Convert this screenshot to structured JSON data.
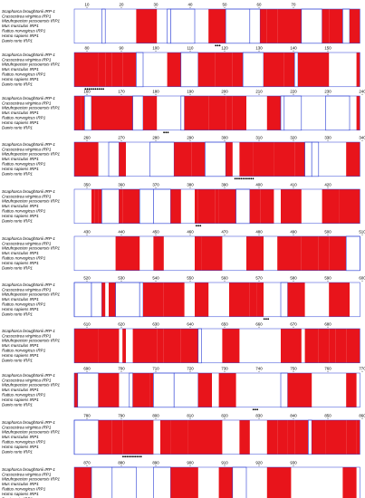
{
  "species": [
    "Scapharca broughtonii IRP-1",
    "Crassostrea virginica IRP1",
    "Mizuhopecten yessoensis IRP1",
    "Mus musculus IRP1",
    "Rattus norvegicus IRP1",
    "Homo sapiens IRP1",
    "Danio rerio IRP1"
  ],
  "blocks": [
    {
      "positions": [
        10,
        20,
        30,
        40,
        50,
        60,
        70
      ]
    },
    {
      "positions": [
        80,
        90,
        100,
        110,
        120,
        130,
        140,
        150
      ]
    },
    {
      "positions": [
        160,
        170,
        180,
        190,
        200,
        210,
        220,
        230,
        240
      ]
    },
    {
      "positions": [
        260,
        270,
        280,
        290,
        300,
        310,
        320,
        330,
        340
      ]
    },
    {
      "positions": [
        350,
        360,
        370,
        380,
        390,
        400,
        410,
        420
      ]
    },
    {
      "positions": [
        430,
        440,
        450,
        460,
        470,
        480,
        490,
        500,
        510
      ]
    },
    {
      "positions": [
        520,
        530,
        540,
        550,
        560,
        570,
        580,
        590,
        600
      ]
    },
    {
      "positions": [
        610,
        620,
        630,
        640,
        650,
        660,
        670,
        680
      ]
    },
    {
      "positions": [
        690,
        700,
        710,
        720,
        730,
        740,
        750,
        760,
        770
      ]
    },
    {
      "positions": [
        780,
        790,
        800,
        810,
        820,
        830,
        840,
        850,
        860
      ]
    },
    {
      "positions": [
        870,
        880,
        890,
        900,
        910,
        920,
        930
      ]
    }
  ]
}
